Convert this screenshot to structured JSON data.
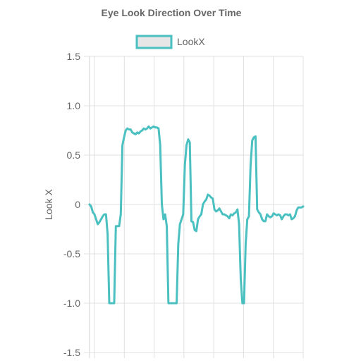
{
  "chart_data": {
    "type": "line",
    "title": "Eye Look Direction Over Time",
    "ylabel": "Look X",
    "xlabel": "",
    "ylim": [
      -1.5,
      1.5
    ],
    "y_ticks": [
      "1.5",
      "1.0",
      "0.5",
      "0",
      "-0.5",
      "-1.0",
      "-1.5"
    ],
    "y_tick_values": [
      1.5,
      1.0,
      0.5,
      0,
      -0.5,
      -1.0,
      -1.5
    ],
    "grid": true,
    "legend_position": "top",
    "series": [
      {
        "name": "LookX",
        "color": "#4bc0c0",
        "fill": "#e6e6e6",
        "values": [
          0.0,
          -0.02,
          -0.08,
          -0.1,
          -0.15,
          -0.2,
          -0.18,
          -0.15,
          -0.12,
          -0.1,
          -0.1,
          -0.3,
          -1.0,
          -1.0,
          -1.0,
          -1.0,
          -0.22,
          -0.22,
          -0.22,
          -0.1,
          0.6,
          0.68,
          0.75,
          0.77,
          0.76,
          0.76,
          0.73,
          0.72,
          0.71,
          0.73,
          0.72,
          0.74,
          0.75,
          0.77,
          0.76,
          0.77,
          0.79,
          0.77,
          0.78,
          0.79,
          0.78,
          0.78,
          0.77,
          0.6,
          0.0,
          -0.15,
          -0.1,
          -0.22,
          -1.0,
          -1.0,
          -1.0,
          -1.0,
          -1.0,
          -1.0,
          -0.4,
          -0.2,
          -0.15,
          -0.1,
          0.4,
          0.6,
          0.66,
          0.63,
          -0.17,
          -0.18,
          -0.26,
          -0.27,
          -0.15,
          -0.12,
          -0.1,
          0.0,
          0.03,
          0.05,
          0.1,
          0.09,
          0.07,
          0.06,
          -0.05,
          -0.07,
          -0.06,
          -0.04,
          -0.07,
          -0.1,
          -0.1,
          -0.11,
          -0.12,
          -0.14,
          -0.1,
          -0.11,
          -0.09,
          -0.08,
          -0.05,
          -0.2,
          -0.75,
          -1.0,
          -1.0,
          -0.4,
          -0.15,
          -0.12,
          0.4,
          0.65,
          0.68,
          0.69,
          -0.05,
          -0.08,
          -0.1,
          -0.15,
          -0.17,
          -0.17,
          -0.1,
          -0.12,
          -0.13,
          -0.12,
          -0.09,
          -0.1,
          -0.11,
          -0.1,
          -0.11,
          -0.15,
          -0.12,
          -0.1,
          -0.1,
          -0.11,
          -0.1,
          -0.15,
          -0.14,
          -0.12,
          -0.06,
          -0.03,
          -0.03,
          -0.03,
          -0.02
        ]
      }
    ]
  }
}
